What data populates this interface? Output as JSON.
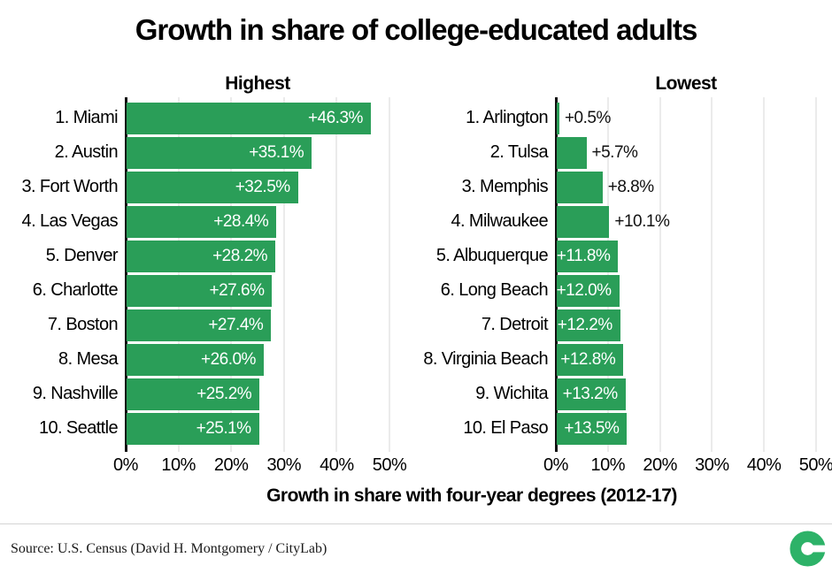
{
  "title": "Growth in share of college-educated adults",
  "x_axis_title": "Growth in share with four-year degrees (2012-17)",
  "source": "Source: U.S. Census (David H. Montgomery / CityLab)",
  "logo": "citylab-c-logo",
  "colors": {
    "bar": "#2a9e58",
    "axis": "#111111",
    "gridline": "#ebebeb",
    "value_label_inside": "#ffffff",
    "value_label_outside": "#111111",
    "logo_green": "#2db268",
    "divider": "#d4d4d4"
  },
  "axis_ticks": [
    "0%",
    "10%",
    "20%",
    "30%",
    "40%",
    "50%"
  ],
  "chart_data": [
    {
      "type": "bar",
      "orientation": "horizontal",
      "title": "Highest",
      "categories": [
        "1. Miami",
        "2. Austin",
        "3. Fort Worth",
        "4. Las Vegas",
        "5. Denver",
        "6. Charlotte",
        "7. Boston",
        "8. Mesa",
        "9. Nashville",
        "10. Seattle"
      ],
      "values": [
        46.3,
        35.1,
        32.5,
        28.4,
        28.2,
        27.6,
        27.4,
        26.0,
        25.2,
        25.1
      ],
      "bar_labels": [
        "+46.3%",
        "+35.1%",
        "+32.5%",
        "+28.4%",
        "+28.2%",
        "+27.6%",
        "+27.4%",
        "+26.0%",
        "+25.2%",
        "+25.1%"
      ],
      "xlim": [
        0,
        50
      ],
      "tick_labels": [
        "0%",
        "10%",
        "20%",
        "30%",
        "40%",
        "50%"
      ],
      "grid": true,
      "legend": "none"
    },
    {
      "type": "bar",
      "orientation": "horizontal",
      "title": "Lowest",
      "categories": [
        "1. Arlington",
        "2. Tulsa",
        "3. Memphis",
        "4. Milwaukee",
        "5. Albuquerque",
        "6. Long Beach",
        "7. Detroit",
        "8. Virginia Beach",
        "9. Wichita",
        "10. El Paso"
      ],
      "values": [
        0.5,
        5.7,
        8.8,
        10.1,
        11.8,
        12.0,
        12.2,
        12.8,
        13.2,
        13.5
      ],
      "bar_labels": [
        "+0.5%",
        "+5.7%",
        "+8.8%",
        "+10.1%",
        "+11.8%",
        "+12.0%",
        "+12.2%",
        "+12.8%",
        "+13.2%",
        "+13.5%"
      ],
      "xlim": [
        0,
        50
      ],
      "tick_labels": [
        "0%",
        "10%",
        "20%",
        "30%",
        "40%",
        "50%"
      ],
      "grid": true,
      "legend": "none"
    }
  ]
}
